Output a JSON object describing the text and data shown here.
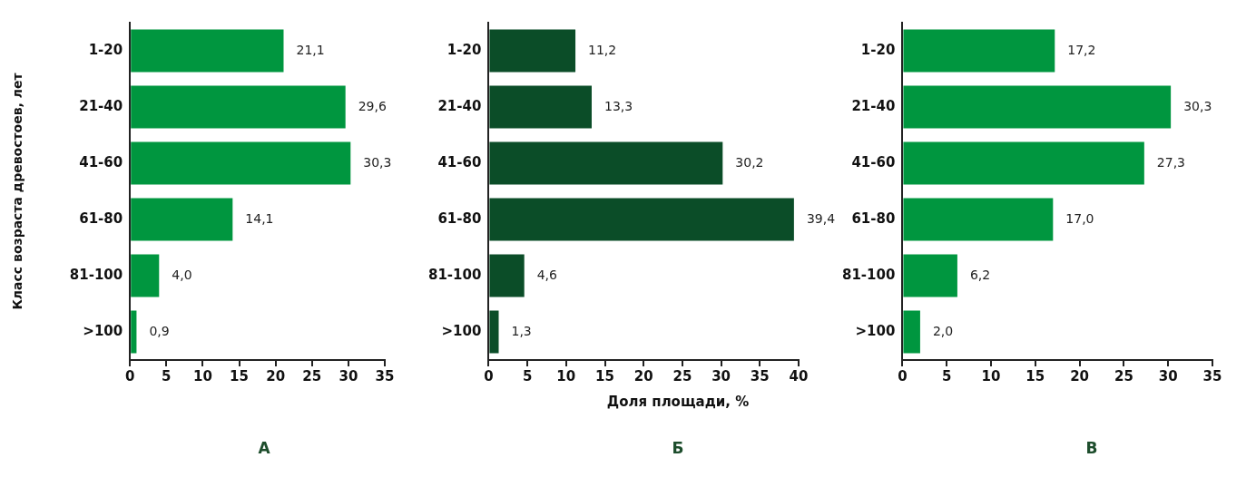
{
  "chart_data": [
    {
      "type": "bar",
      "orientation": "horizontal",
      "title": "А",
      "ylabel": "Класс возраста древостоев, лет",
      "categories": [
        "1-20",
        "21-40",
        "41-60",
        "61-80",
        "81-100",
        ">100"
      ],
      "values": [
        21.1,
        29.6,
        30.3,
        14.1,
        4.0,
        0.9
      ],
      "value_labels": [
        "21,1",
        "29,6",
        "30,3",
        "14,1",
        "4,0",
        "0,9"
      ],
      "color": "#00963f",
      "xlim": [
        0,
        35
      ],
      "xticks": [
        0,
        5,
        10,
        15,
        20,
        25,
        30,
        35
      ],
      "grid": false,
      "legend": false
    },
    {
      "type": "bar",
      "orientation": "horizontal",
      "title": "Б",
      "xlabel": "Доля площади, %",
      "categories": [
        "1-20",
        "21-40",
        "41-60",
        "61-80",
        "81-100",
        ">100"
      ],
      "values": [
        11.2,
        13.3,
        30.2,
        39.4,
        4.6,
        1.3
      ],
      "value_labels": [
        "11,2",
        "13,3",
        "30,2",
        "39,4",
        "4,6",
        "1,3"
      ],
      "color": "#0b4d28",
      "xlim": [
        0,
        40
      ],
      "xticks": [
        0,
        5,
        10,
        15,
        20,
        25,
        30,
        35,
        40
      ],
      "grid": false,
      "legend": false
    },
    {
      "type": "bar",
      "orientation": "horizontal",
      "title": "В",
      "categories": [
        "1-20",
        "21-40",
        "41-60",
        "61-80",
        "81-100",
        ">100"
      ],
      "values": [
        17.2,
        30.3,
        27.3,
        17.0,
        6.2,
        2.0
      ],
      "value_labels": [
        "17,2",
        "30,3",
        "27,3",
        "17,0",
        "6,2",
        "2,0"
      ],
      "color": "#00963f",
      "xlim": [
        0,
        35
      ],
      "xticks": [
        0,
        5,
        10,
        15,
        20,
        25,
        30,
        35
      ],
      "grid": false,
      "legend": false
    }
  ]
}
